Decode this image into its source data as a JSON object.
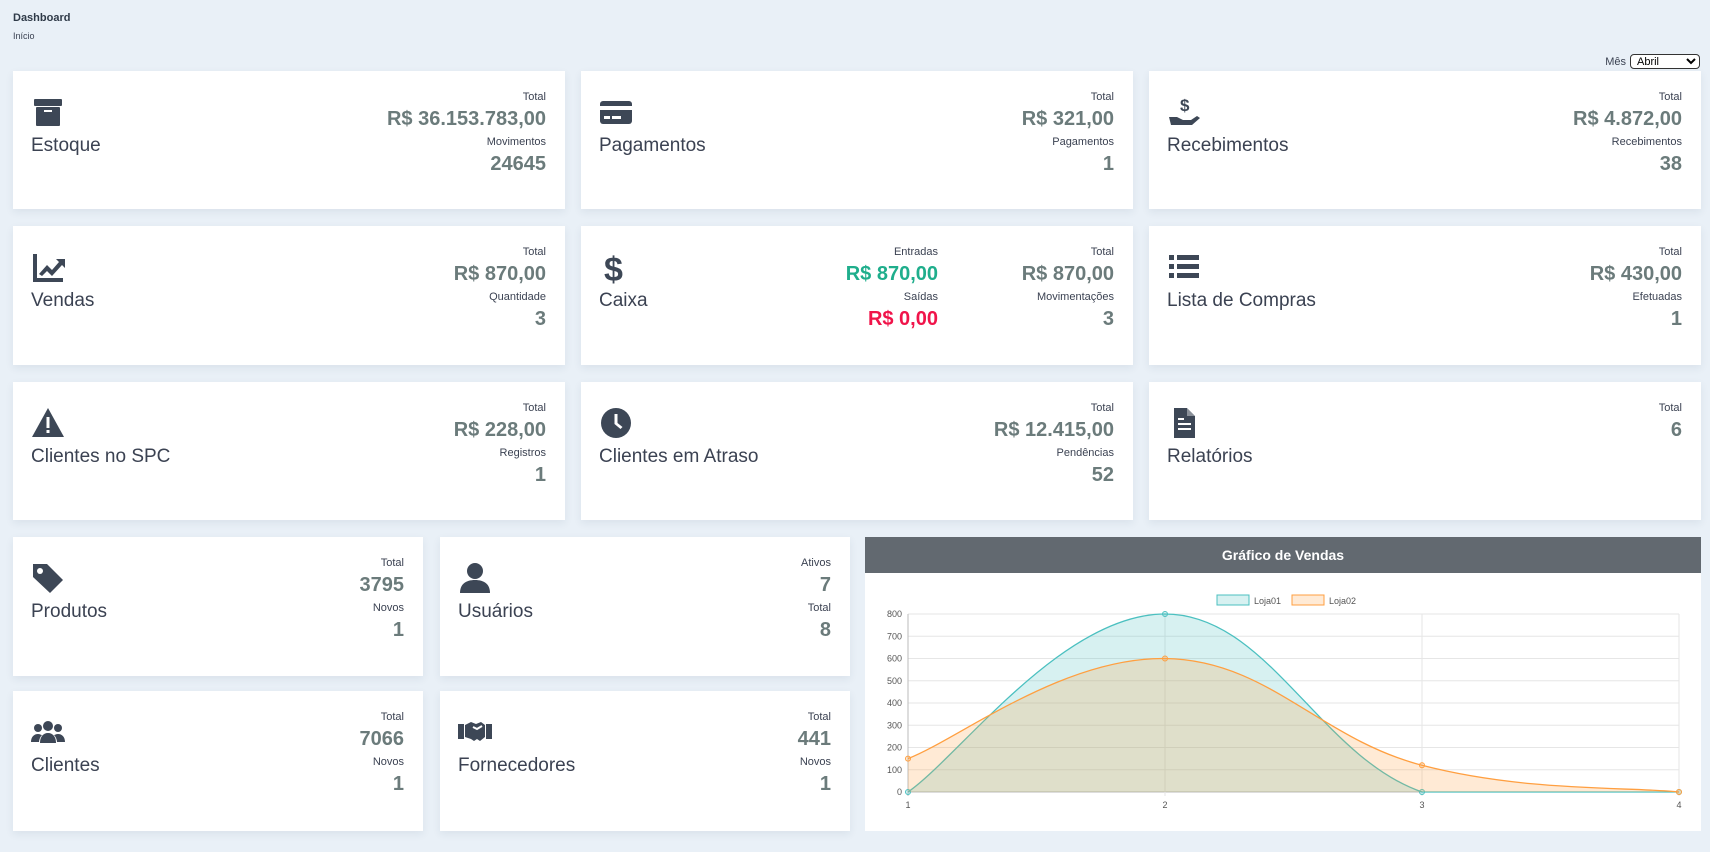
{
  "header": {
    "title": "Dashboard",
    "breadcrumb": "Início"
  },
  "month_filter": {
    "label": "Mês",
    "selected": "Abril"
  },
  "cards": {
    "estoque": {
      "title": "Estoque",
      "icon": "archive-box-icon",
      "l1": "Total",
      "v1": "R$ 36.153.783,00",
      "l2": "Movimentos",
      "v2": "24645"
    },
    "pagamentos": {
      "title": "Pagamentos",
      "icon": "credit-card-icon",
      "l1": "Total",
      "v1": "R$ 321,00",
      "l2": "Pagamentos",
      "v2": "1"
    },
    "recebimentos": {
      "title": "Recebimentos",
      "icon": "hand-dollar-icon",
      "l1": "Total",
      "v1": "R$ 4.872,00",
      "l2": "Recebimentos",
      "v2": "38"
    },
    "vendas": {
      "title": "Vendas",
      "icon": "chart-line-icon",
      "l1": "Total",
      "v1": "R$ 870,00",
      "l2": "Quantidade",
      "v2": "3"
    },
    "caixa": {
      "title": "Caixa",
      "icon": "dollar-sign-icon",
      "l_in": "Entradas",
      "v_in": "R$ 870,00",
      "l_out": "Saídas",
      "v_out": "R$ 0,00",
      "l1": "Total",
      "v1": "R$ 870,00",
      "l2": "Movimentações",
      "v2": "3"
    },
    "lista_compras": {
      "title": "Lista de Compras",
      "icon": "list-icon",
      "l1": "Total",
      "v1": "R$ 430,00",
      "l2": "Efetuadas",
      "v2": "1"
    },
    "spc": {
      "title": "Clientes no SPC",
      "icon": "warning-icon",
      "l1": "Total",
      "v1": "R$ 228,00",
      "l2": "Registros",
      "v2": "1"
    },
    "atraso": {
      "title": "Clientes em Atraso",
      "icon": "clock-icon",
      "l1": "Total",
      "v1": "R$ 12.415,00",
      "l2": "Pendências",
      "v2": "52"
    },
    "relatorios": {
      "title": "Relatórios",
      "icon": "file-icon",
      "l1": "Total",
      "v1": "6"
    },
    "produtos": {
      "title": "Produtos",
      "icon": "tag-icon",
      "l1": "Total",
      "v1": "3795",
      "l2": "Novos",
      "v2": "1"
    },
    "usuarios": {
      "title": "Usuários",
      "icon": "user-icon",
      "l1": "Ativos",
      "v1": "7",
      "l2": "Total",
      "v2": "8"
    },
    "clientes": {
      "title": "Clientes",
      "icon": "users-icon",
      "l1": "Total",
      "v1": "7066",
      "l2": "Novos",
      "v2": "1"
    },
    "fornecedores": {
      "title": "Fornecedores",
      "icon": "handshake-icon",
      "l1": "Total",
      "v1": "441",
      "l2": "Novos",
      "v2": "1"
    }
  },
  "colors": {
    "positive": "#1fae8c",
    "negative": "#f0144a",
    "loja01": "#4bc0c0",
    "loja02": "#ff9f40"
  },
  "chart_data": {
    "type": "area",
    "title": "Gráfico de Vendas",
    "categories": [
      "1",
      "2",
      "3",
      "4"
    ],
    "series": [
      {
        "name": "Loja01",
        "values": [
          0,
          800,
          0,
          0
        ]
      },
      {
        "name": "Loja02",
        "values": [
          150,
          600,
          120,
          0
        ]
      }
    ],
    "ylim": [
      0,
      800
    ],
    "yticks": [
      "0",
      "100",
      "200",
      "300",
      "400",
      "500",
      "600",
      "700",
      "800"
    ],
    "grid": true,
    "legend": "top"
  }
}
